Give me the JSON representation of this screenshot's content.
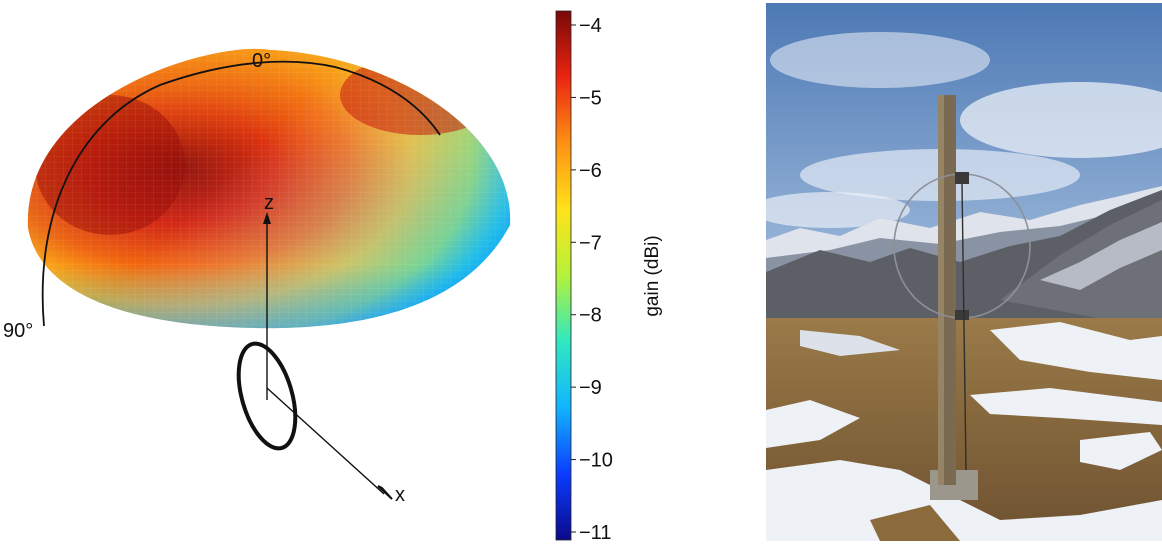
{
  "pattern": {
    "axis_z": "z",
    "axis_x": "x",
    "angle_zero": "0°",
    "angle_ninety": "90°"
  },
  "colorbar": {
    "label": "gain (dBi)",
    "ticks": [
      "−4",
      "−5",
      "−6",
      "−7",
      "−8",
      "−9",
      "−10",
      "−11"
    ],
    "min": -11,
    "max": -4,
    "colors": [
      "#0a0a8a",
      "#0b3cff",
      "#12b4ff",
      "#30e8c0",
      "#b5f23a",
      "#ffe21a",
      "#ff9014",
      "#ea2510",
      "#7a0808"
    ]
  },
  "photo": {
    "sky_colors": [
      "#4d79b5",
      "#9cb8da",
      "#d9e3ef"
    ],
    "grass_color": "#8b6a3c",
    "snow_color": "#eef1f6",
    "pole_color": "#7a6a52"
  }
}
